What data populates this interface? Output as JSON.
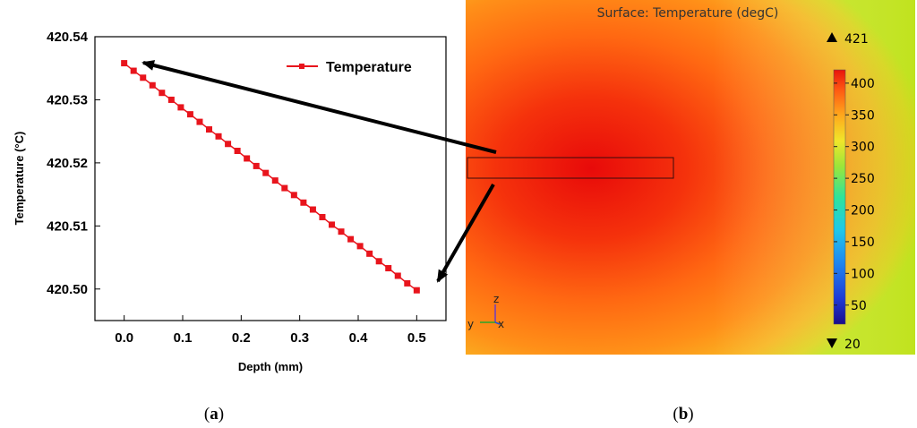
{
  "chart_data": [
    {
      "panel": "a",
      "type": "line",
      "title": "",
      "xlabel": "Depth (mm)",
      "ylabel": "Temperature (°C)",
      "xlim": [
        -0.05,
        0.55
      ],
      "ylim": [
        420.495,
        420.54
      ],
      "x_ticks": [
        0.0,
        0.1,
        0.2,
        0.3,
        0.4,
        0.5
      ],
      "x_tick_labels": [
        "0.0",
        "0.1",
        "0.2",
        "0.3",
        "0.4",
        "0.5"
      ],
      "y_ticks": [
        420.5,
        420.51,
        420.52,
        420.53,
        420.54
      ],
      "y_tick_labels": [
        "420.50",
        "420.51",
        "420.52",
        "420.53",
        "420.54"
      ],
      "legend": "top-right",
      "series": [
        {
          "name": "Temperature",
          "color": "#e8141c",
          "marker": "square",
          "x": [
            0.0,
            0.01613,
            0.03226,
            0.04839,
            0.06452,
            0.08065,
            0.09677,
            0.1129,
            0.12903,
            0.14516,
            0.16129,
            0.17742,
            0.19355,
            0.20968,
            0.22581,
            0.24194,
            0.25806,
            0.27419,
            0.29032,
            0.30645,
            0.32258,
            0.33871,
            0.35484,
            0.37097,
            0.3871,
            0.40323,
            0.41935,
            0.43548,
            0.45161,
            0.46774,
            0.48387,
            0.5
          ],
          "y": [
            420.5358,
            420.5346,
            420.5335,
            420.5323,
            420.5311,
            420.53,
            420.5288,
            420.5277,
            420.5265,
            420.5253,
            420.5242,
            420.523,
            420.5219,
            420.5207,
            420.5195,
            420.5184,
            420.5172,
            420.516,
            420.5149,
            420.5137,
            420.5126,
            420.5114,
            420.5102,
            420.5091,
            420.5079,
            420.5068,
            420.5056,
            420.5044,
            420.5033,
            420.5021,
            420.5009,
            420.4998
          ]
        }
      ]
    },
    {
      "panel": "b",
      "type": "heatmap",
      "title": "Surface: Temperature (degC)",
      "colorbar": {
        "max_label": "421",
        "min_label": "20",
        "range": [
          20,
          421
        ],
        "ticks": [
          50,
          100,
          150,
          200,
          250,
          300,
          350,
          400
        ],
        "tick_labels": [
          "50",
          "100",
          "150",
          "200",
          "250",
          "300",
          "350",
          "400"
        ]
      },
      "axis_triad": [
        "z",
        "y",
        "x"
      ]
    }
  ],
  "captions": {
    "a": "a",
    "b": "b"
  },
  "colors": {
    "series": "#e8141c",
    "arrow": "#000000",
    "hot": "#e60a0a",
    "warm": "#ff7a12",
    "cool": "#c4e61c"
  }
}
